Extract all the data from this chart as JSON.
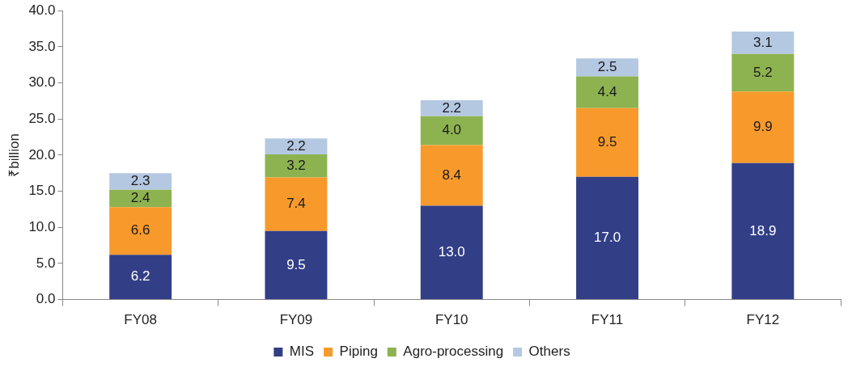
{
  "chart_data": {
    "type": "bar",
    "stacked": true,
    "ylabel": "₹billion",
    "categories": [
      "FY08",
      "FY09",
      "FY10",
      "FY11",
      "FY12"
    ],
    "series": [
      {
        "name": "MIS",
        "color": "#323f87",
        "values": [
          6.2,
          9.5,
          13.0,
          17.0,
          18.9
        ],
        "value_labels": [
          "6.2",
          "9.5",
          "13.0",
          "17.0",
          "18.9"
        ]
      },
      {
        "name": "Piping",
        "color": "#f89a2b",
        "values": [
          6.6,
          7.4,
          8.4,
          9.5,
          9.9
        ],
        "value_labels": [
          "6.6",
          "7.4",
          "8.4",
          "9.5",
          "9.9"
        ]
      },
      {
        "name": "Agro-processing",
        "color": "#8db350",
        "values": [
          2.4,
          3.2,
          4.0,
          4.4,
          5.2
        ],
        "value_labels": [
          "2.4",
          "3.2",
          "4.0",
          "4.4",
          "5.2"
        ]
      },
      {
        "name": "Others",
        "color": "#b4c8e2",
        "values": [
          2.3,
          2.2,
          2.2,
          2.5,
          3.1
        ],
        "value_labels": [
          "2.3",
          "2.2",
          "2.2",
          "2.5",
          "3.1"
        ]
      }
    ],
    "ylim": [
      0,
      40
    ],
    "yticks": [
      {
        "value": 0,
        "label": "0.0"
      },
      {
        "value": 5,
        "label": "5.0"
      },
      {
        "value": 10,
        "label": "10.0"
      },
      {
        "value": 15,
        "label": "15.0"
      },
      {
        "value": 20,
        "label": "20.0"
      },
      {
        "value": 25,
        "label": "25.0"
      },
      {
        "value": 30,
        "label": "30.0"
      },
      {
        "value": 35,
        "label": "35.0"
      },
      {
        "value": 40,
        "label": "40.0"
      }
    ],
    "grid": false,
    "legend": "bottom"
  }
}
